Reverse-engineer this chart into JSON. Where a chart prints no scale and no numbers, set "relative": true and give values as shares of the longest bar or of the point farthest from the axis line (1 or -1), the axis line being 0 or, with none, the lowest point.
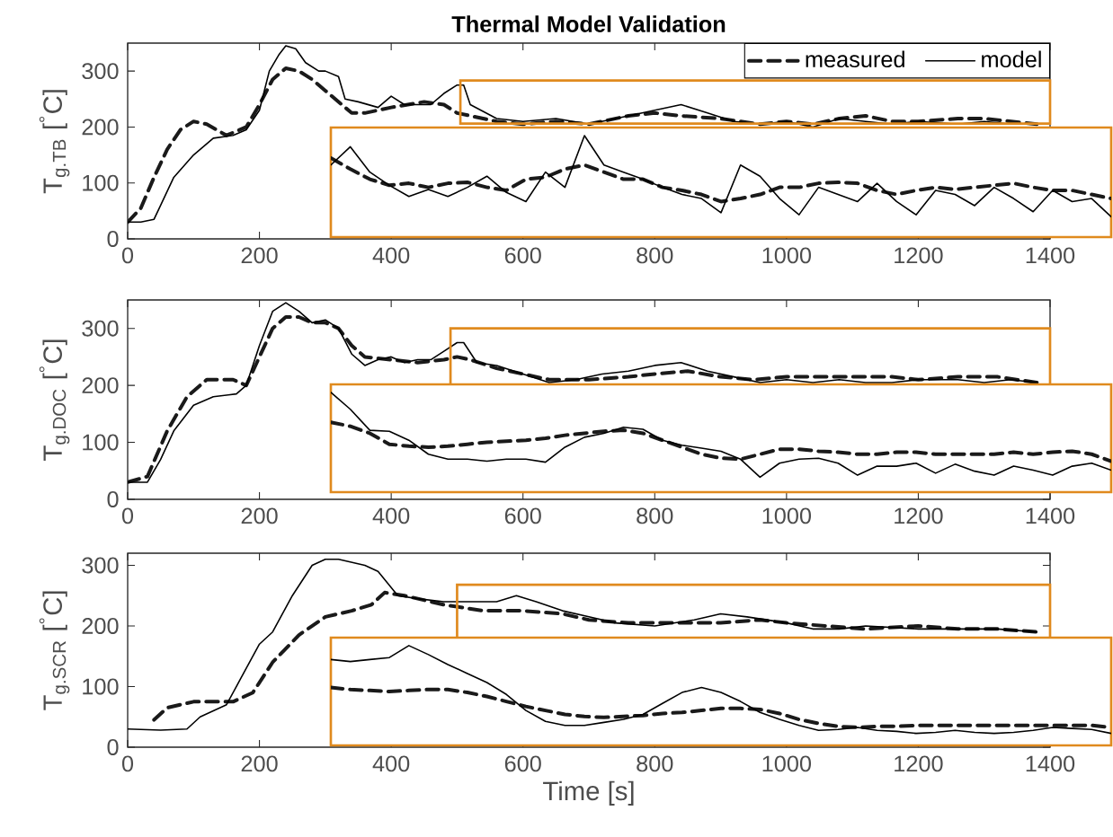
{
  "chart_data": [
    {
      "type": "line",
      "title": "Thermal Model Validation",
      "ylabel": "T$_{g.TB}$ [$^{°}$C]",
      "xlim": [
        0,
        1400
      ],
      "xticks": [
        0,
        200,
        400,
        600,
        800,
        1000,
        1200,
        1400
      ],
      "ylim": [
        0,
        350
      ],
      "yticks": [
        0,
        100,
        200,
        300
      ],
      "legend": "top right",
      "series": [
        {
          "name": "measured",
          "color": "#1a1a1a",
          "line_style": "dashed",
          "x": [
            0,
            20,
            40,
            60,
            80,
            100,
            120,
            150,
            180,
            200,
            220,
            240,
            260,
            280,
            300,
            320,
            340,
            360,
            400,
            450,
            480,
            500,
            520,
            560,
            600,
            650,
            700,
            760,
            800,
            840,
            900,
            960,
            1000,
            1040,
            1080,
            1120,
            1160,
            1200,
            1260,
            1300,
            1340,
            1380
          ],
          "values": [
            30,
            55,
            110,
            160,
            195,
            210,
            205,
            185,
            200,
            240,
            285,
            305,
            300,
            285,
            265,
            245,
            225,
            225,
            235,
            245,
            240,
            225,
            220,
            210,
            205,
            210,
            205,
            220,
            225,
            220,
            215,
            205,
            210,
            205,
            215,
            220,
            210,
            210,
            215,
            215,
            210,
            205
          ]
        },
        {
          "name": "model",
          "color": "#000000",
          "line_style": "solid",
          "x": [
            0,
            20,
            40,
            50,
            70,
            100,
            130,
            160,
            180,
            200,
            215,
            230,
            240,
            255,
            270,
            290,
            300,
            320,
            330,
            350,
            380,
            400,
            420,
            460,
            480,
            500,
            510,
            520,
            560,
            600,
            650,
            700,
            760,
            800,
            840,
            880,
            920,
            960,
            1000,
            1040,
            1080,
            1120,
            1160,
            1200,
            1260,
            1300,
            1340,
            1380
          ],
          "values": [
            30,
            30,
            35,
            60,
            110,
            150,
            180,
            185,
            195,
            230,
            300,
            330,
            345,
            340,
            315,
            300,
            300,
            290,
            250,
            245,
            235,
            255,
            240,
            240,
            260,
            275,
            275,
            240,
            215,
            210,
            215,
            205,
            220,
            230,
            240,
            225,
            210,
            205,
            210,
            200,
            215,
            210,
            205,
            210,
            205,
            210,
            205,
            205
          ]
        }
      ]
    },
    {
      "type": "line",
      "relative": true,
      "tick_labels": false,
      "categories": [
        null,
        null,
        null,
        null,
        null,
        null,
        null,
        null,
        null,
        null,
        null,
        null,
        null,
        null,
        null,
        null,
        null,
        null,
        null,
        null,
        null,
        null,
        null,
        null,
        null,
        null,
        null,
        null,
        null,
        null,
        null,
        null,
        null,
        null,
        null,
        null,
        null,
        null,
        null,
        null,
        null
      ],
      "series": [
        {
          "color": "#1a1a1a",
          "line_style": "dashed",
          "values": [
            0.78,
            0.67,
            0.57,
            0.51,
            0.53,
            0.49,
            0.53,
            0.54,
            0.49,
            0.46,
            0.57,
            0.59,
            0.67,
            0.71,
            0.64,
            0.57,
            0.57,
            0.49,
            0.46,
            0.42,
            0.35,
            0.38,
            0.42,
            0.49,
            0.49,
            0.53,
            0.54,
            0.53,
            0.46,
            0.42,
            0.46,
            0.49,
            0.47,
            0.49,
            0.51,
            0.53,
            0.49,
            0.46,
            0.46,
            0.42,
            0.38
          ]
        },
        {
          "color": "#000000",
          "line_style": "solid",
          "values": [
            0.71,
            0.89,
            0.64,
            0.51,
            0.4,
            0.47,
            0.4,
            0.49,
            0.6,
            0.44,
            0.35,
            0.64,
            0.49,
            1,
            0.71,
            0.64,
            0.57,
            0.49,
            0.42,
            0.38,
            0.24,
            0.71,
            0.6,
            0.38,
            0.22,
            0.49,
            0.42,
            0.35,
            0.53,
            0.35,
            0.22,
            0.46,
            0.42,
            0.31,
            0.49,
            0.38,
            0.25,
            0.46,
            0.35,
            0.38,
            0.2
          ]
        }
      ]
    },
    {
      "type": "line",
      "ylabel": "T$_{g.DOC}$ [$^{°}$C]",
      "xlim": [
        0,
        1400
      ],
      "xticks": [
        0,
        200,
        400,
        600,
        800,
        1000,
        1200,
        1400
      ],
      "ylim": [
        0,
        350
      ],
      "yticks": [
        0,
        100,
        200,
        300
      ],
      "series": [
        {
          "color": "#1a1a1a",
          "line_style": "dashed",
          "x": [
            0,
            30,
            60,
            90,
            120,
            160,
            180,
            200,
            220,
            240,
            260,
            280,
            300,
            320,
            340,
            360,
            400,
            440,
            480,
            500,
            520,
            560,
            600,
            640,
            700,
            760,
            800,
            850,
            900,
            950,
            1000,
            1040,
            1100,
            1160,
            1200,
            1260,
            1320,
            1380
          ],
          "values": [
            30,
            40,
            120,
            180,
            210,
            210,
            200,
            250,
            300,
            320,
            320,
            310,
            310,
            300,
            270,
            250,
            245,
            240,
            245,
            250,
            245,
            230,
            220,
            210,
            210,
            215,
            220,
            225,
            215,
            210,
            215,
            215,
            215,
            215,
            210,
            215,
            215,
            205
          ]
        },
        {
          "color": "#000000",
          "line_style": "solid",
          "x": [
            0,
            30,
            50,
            70,
            100,
            130,
            165,
            180,
            200,
            220,
            240,
            260,
            280,
            300,
            320,
            340,
            360,
            380,
            400,
            420,
            440,
            460,
            480,
            500,
            510,
            530,
            560,
            600,
            640,
            680,
            720,
            760,
            800,
            840,
            880,
            920,
            960,
            1000,
            1040,
            1080,
            1120,
            1160,
            1200,
            1260,
            1300,
            1340,
            1380
          ],
          "values": [
            30,
            30,
            70,
            120,
            165,
            180,
            185,
            200,
            270,
            330,
            345,
            330,
            310,
            315,
            300,
            255,
            235,
            245,
            250,
            240,
            245,
            245,
            260,
            275,
            275,
            240,
            235,
            220,
            205,
            210,
            220,
            225,
            235,
            240,
            225,
            215,
            205,
            210,
            205,
            210,
            205,
            205,
            210,
            210,
            205,
            210,
            205
          ]
        }
      ]
    },
    {
      "type": "line",
      "relative": true,
      "tick_labels": false,
      "categories": [
        null,
        null,
        null,
        null,
        null,
        null,
        null,
        null,
        null,
        null,
        null,
        null,
        null,
        null,
        null,
        null,
        null,
        null,
        null,
        null,
        null,
        null,
        null,
        null,
        null,
        null,
        null,
        null,
        null,
        null,
        null,
        null,
        null,
        null,
        null,
        null,
        null,
        null,
        null,
        null,
        null
      ],
      "series": [
        {
          "color": "#1a1a1a",
          "line_style": "dashed",
          "values": [
            0.7,
            0.66,
            0.59,
            0.48,
            0.46,
            0.45,
            0.46,
            0.48,
            0.5,
            0.51,
            0.52,
            0.54,
            0.57,
            0.59,
            0.61,
            0.62,
            0.59,
            0.52,
            0.45,
            0.38,
            0.34,
            0.33,
            0.38,
            0.43,
            0.43,
            0.41,
            0.4,
            0.38,
            0.38,
            0.4,
            0.4,
            0.38,
            0.38,
            0.38,
            0.38,
            0.4,
            0.38,
            0.4,
            0.41,
            0.38,
            0.31
          ]
        },
        {
          "color": "#000000",
          "line_style": "solid",
          "values": [
            1,
            0.83,
            0.62,
            0.61,
            0.52,
            0.38,
            0.33,
            0.33,
            0.31,
            0.33,
            0.33,
            0.3,
            0.45,
            0.55,
            0.59,
            0.65,
            0.63,
            0.52,
            0.47,
            0.44,
            0.41,
            0.33,
            0.15,
            0.29,
            0.33,
            0.34,
            0.29,
            0.17,
            0.26,
            0.26,
            0.29,
            0.19,
            0.28,
            0.21,
            0.17,
            0.26,
            0.22,
            0.17,
            0.26,
            0.29,
            0.22
          ]
        }
      ]
    },
    {
      "type": "line",
      "ylabel": "T$_{g.SCR}$ [$^{°}$C]",
      "xlabel": "Time [s]",
      "xlim": [
        0,
        1400
      ],
      "xticks": [
        0,
        200,
        400,
        600,
        800,
        1000,
        1200,
        1400
      ],
      "ylim": [
        0,
        320
      ],
      "yticks": [
        0,
        100,
        200,
        300
      ],
      "series": [
        {
          "color": "#1a1a1a",
          "line_style": "dashed",
          "x": [
            40,
            60,
            100,
            160,
            190,
            220,
            260,
            300,
            340,
            370,
            390,
            420,
            480,
            540,
            600,
            660,
            700,
            760,
            800,
            900,
            960,
            1000,
            1060,
            1120,
            1200,
            1260,
            1320,
            1380
          ],
          "values": [
            45,
            65,
            75,
            75,
            90,
            140,
            185,
            215,
            225,
            235,
            255,
            250,
            235,
            225,
            225,
            220,
            210,
            205,
            205,
            205,
            210,
            205,
            200,
            195,
            200,
            195,
            195,
            190
          ]
        },
        {
          "color": "#000000",
          "line_style": "solid",
          "x": [
            0,
            50,
            90,
            110,
            150,
            170,
            200,
            220,
            250,
            280,
            300,
            320,
            340,
            360,
            380,
            395,
            410,
            440,
            480,
            520,
            560,
            590,
            620,
            660,
            700,
            740,
            800,
            860,
            900,
            940,
            1000,
            1040,
            1080,
            1120,
            1200,
            1260,
            1320,
            1380
          ],
          "values": [
            30,
            28,
            30,
            50,
            70,
            110,
            170,
            190,
            250,
            300,
            310,
            310,
            305,
            300,
            290,
            270,
            250,
            245,
            240,
            240,
            240,
            250,
            240,
            225,
            215,
            205,
            200,
            210,
            220,
            215,
            205,
            195,
            195,
            200,
            195,
            195,
            195,
            190
          ]
        }
      ]
    },
    {
      "type": "line",
      "relative": true,
      "tick_labels": false,
      "categories": [
        null,
        null,
        null,
        null,
        null,
        null,
        null,
        null,
        null,
        null,
        null,
        null,
        null,
        null,
        null,
        null,
        null,
        null,
        null,
        null,
        null,
        null,
        null,
        null,
        null,
        null,
        null,
        null,
        null,
        null,
        null,
        null,
        null,
        null,
        null,
        null,
        null,
        null,
        null,
        null,
        null
      ],
      "series": [
        {
          "color": "#1a1a1a",
          "line_style": "dashed",
          "values": [
            0.58,
            0.56,
            0.55,
            0.54,
            0.55,
            0.56,
            0.56,
            0.53,
            0.49,
            0.44,
            0.39,
            0.35,
            0.31,
            0.29,
            0.28,
            0.29,
            0.3,
            0.32,
            0.33,
            0.35,
            0.37,
            0.37,
            0.36,
            0.32,
            0.26,
            0.22,
            0.19,
            0.18,
            0.19,
            0.19,
            0.2,
            0.2,
            0.2,
            0.2,
            0.2,
            0.2,
            0.2,
            0.2,
            0.2,
            0.2,
            0.18
          ]
        },
        {
          "color": "#000000",
          "line_style": "solid",
          "values": [
            0.86,
            0.84,
            0.86,
            0.88,
            1,
            0.91,
            0.81,
            0.72,
            0.63,
            0.51,
            0.35,
            0.24,
            0.2,
            0.2,
            0.23,
            0.26,
            0.31,
            0.42,
            0.53,
            0.58,
            0.53,
            0.44,
            0.33,
            0.26,
            0.2,
            0.15,
            0.16,
            0.18,
            0.15,
            0.14,
            0.12,
            0.13,
            0.15,
            0.13,
            0.12,
            0.13,
            0.15,
            0.18,
            0.17,
            0.16,
            0.12
          ]
        }
      ]
    }
  ]
}
